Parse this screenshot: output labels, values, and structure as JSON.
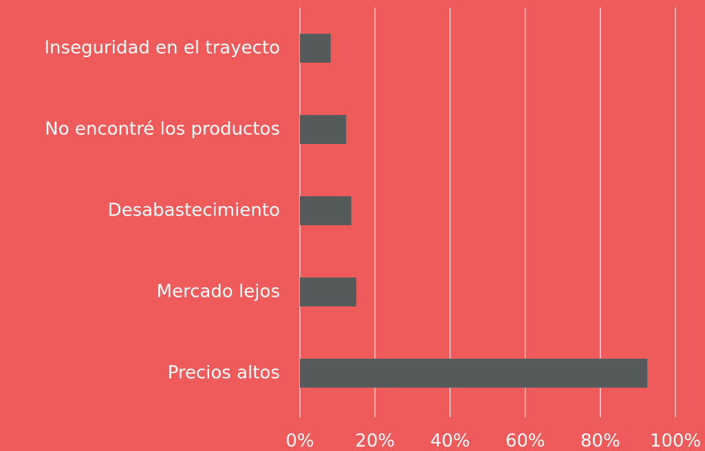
{
  "chart_data": {
    "type": "bar",
    "orientation": "horizontal",
    "categories": [
      "Inseguridad en el trayecto",
      "No encontré los productos",
      "Desabastecimiento",
      "Mercado lejos",
      "Precios altos"
    ],
    "values": [
      8.2,
      12.3,
      13.7,
      15,
      92.5
    ],
    "color": "#555a5a",
    "xlim": [
      0,
      100
    ],
    "xticks": [
      {
        "value": 0,
        "label": "0%"
      },
      {
        "value": 20,
        "label": "20%"
      },
      {
        "value": 40,
        "label": "40%"
      },
      {
        "value": 60,
        "label": "60%"
      },
      {
        "value": 80,
        "label": "80%"
      },
      {
        "value": 100,
        "label": "100%"
      }
    ],
    "grid": true
  }
}
